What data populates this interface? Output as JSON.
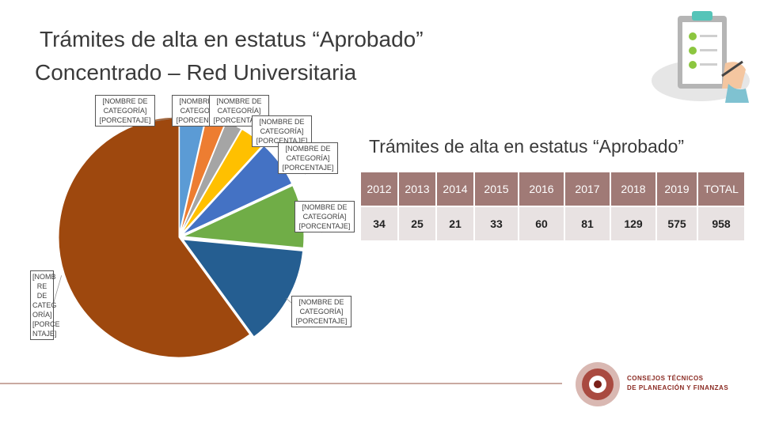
{
  "header": {
    "title_line1": "Trámites de alta en estatus “Aprobado”",
    "title_line2": "Concentrado – Red Universitaria"
  },
  "subtitle": "Trámites de alta en estatus “Aprobado”",
  "brand": {
    "line1": "CONSEJOS TÉCNICOS",
    "line2": "DE PLANEACIÓN Y FINANZAS"
  },
  "chart_data": {
    "type": "pie",
    "categories": [
      "2012",
      "2013",
      "2014",
      "2015",
      "2016",
      "2017",
      "2018",
      "2019"
    ],
    "values": [
      34,
      25,
      21,
      33,
      60,
      81,
      129,
      575
    ],
    "colors": [
      "#5b9bd5",
      "#ed7d31",
      "#a5a5a5",
      "#ffc000",
      "#4472c4",
      "#70ad47",
      "#255e91",
      "#9e480e"
    ],
    "label_text": "[NOMBRE DE\nCATEGORÍA]\n[PORCENTAJE]",
    "label_text_narrow": "[NOMB\nRE DE\nCATEG\nORÍA]\n[PORCE\nNTAJE]"
  },
  "table": {
    "headers": [
      "2012",
      "2013",
      "2014",
      "2015",
      "2016",
      "2017",
      "2018",
      "2019",
      "TOTAL"
    ],
    "values": [
      "34",
      "25",
      "21",
      "33",
      "60",
      "81",
      "129",
      "575",
      "958"
    ]
  },
  "colors": {
    "header_bg": "#a07a76",
    "row_bg": "#e8e2e2"
  }
}
